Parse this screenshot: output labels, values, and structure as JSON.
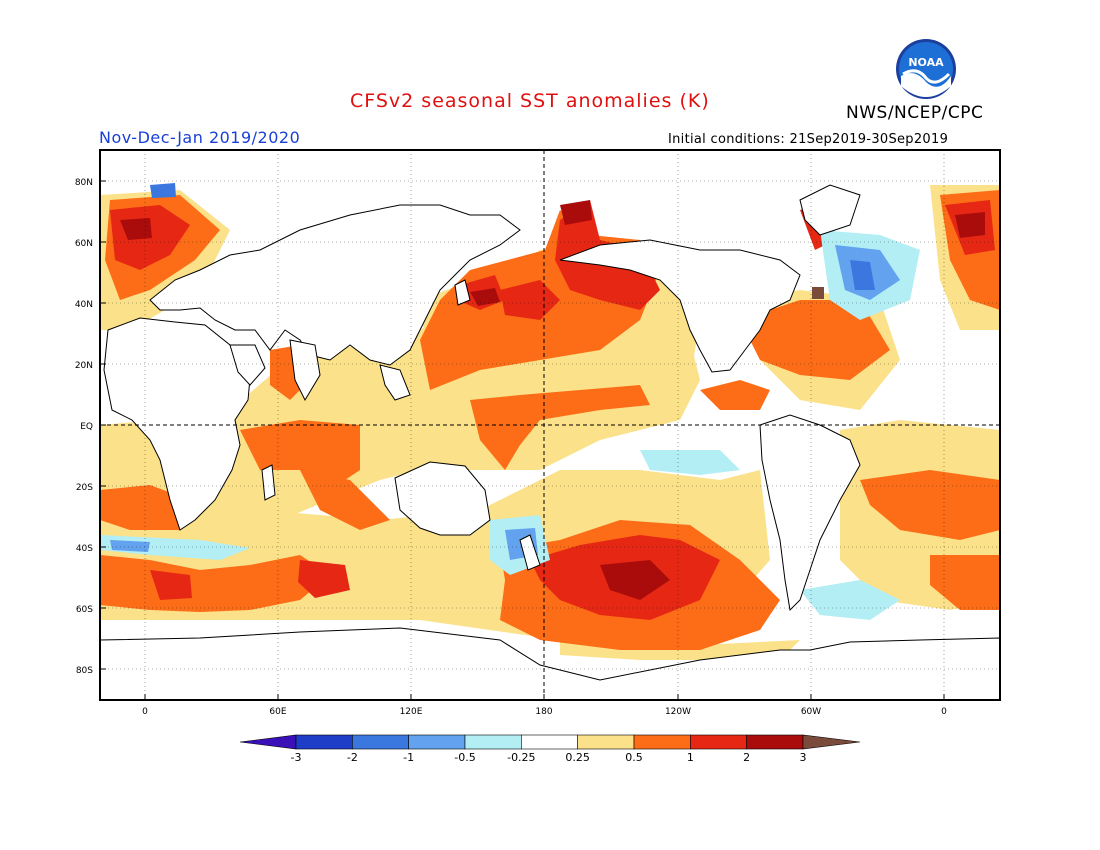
{
  "header": {
    "title": "CFSv2 seasonal SST anomalies (K)",
    "agency": "NWS/NCEP/CPC",
    "period": "Nov-Dec-Jan 2019/2020",
    "initial_conditions": "Initial conditions: 21Sep2019-30Sep2019",
    "logo_text": "NOAA"
  },
  "map": {
    "lat_labels": [
      "80N",
      "60N",
      "40N",
      "20N",
      "EQ",
      "20S",
      "40S",
      "60S",
      "80S"
    ],
    "lon_labels": [
      "0",
      "60E",
      "120E",
      "180",
      "120W",
      "60W",
      "0"
    ],
    "grid_line_color": "#000000"
  },
  "colorbar": {
    "ticks": [
      "-3",
      "-2",
      "-1",
      "-0.5",
      "-0.25",
      "0.25",
      "0.5",
      "1",
      "2",
      "3"
    ],
    "colors": [
      "#1e3ec8",
      "#3a78e0",
      "#62a2ee",
      "#b2eef4",
      "#ffffff",
      "#fbe189",
      "#fd6c16",
      "#e62714",
      "#aa0c0c"
    ],
    "low_extreme_color": "#3a10b8",
    "high_extreme_color": "#7a4a3a"
  },
  "palette": {
    "pale": "#fbe189",
    "orange": "#fd6c16",
    "red": "#e62714",
    "darkred": "#aa0c0c",
    "darkbrown": "#7a4a3a",
    "lightcyan": "#b2eef4",
    "lightblue": "#62a2ee",
    "blue": "#3a78e0"
  }
}
